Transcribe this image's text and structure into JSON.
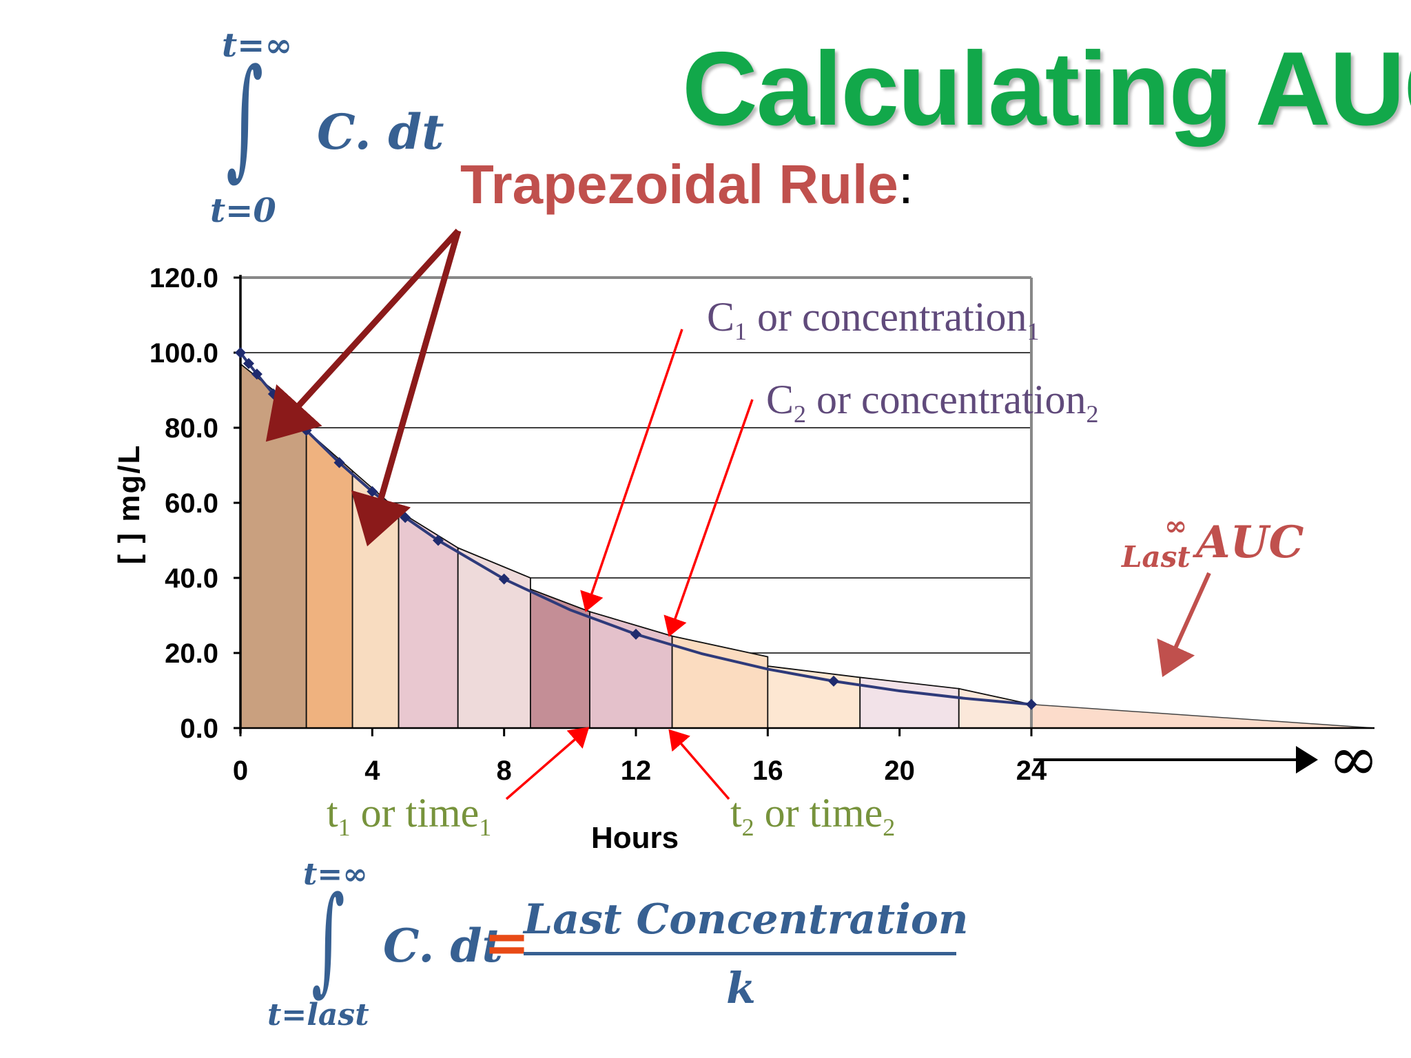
{
  "title": "Calculating AUC",
  "subtitle": "Trapezoidal Rule",
  "subtitle_colon": ":",
  "integral_top": {
    "upper": "t=∞",
    "lower": "t=0",
    "symbol": "∫",
    "integrand": "C. dt"
  },
  "annotations": {
    "c1": {
      "main": "C",
      "sub": "1",
      "text": " or concentration",
      "sub2": "1"
    },
    "c2": {
      "main": "C",
      "sub": "2",
      "text": " or concentration",
      "sub2": "2"
    },
    "t1": {
      "main": "t",
      "sub": "1",
      "text": " or time",
      "sub2": "1"
    },
    "t2": {
      "main": "t",
      "sub": "2",
      "text": " or time",
      "sub2": "2"
    },
    "last_auc": {
      "sup": "∞",
      "sub": "Last",
      "main": "AUC"
    },
    "infinity": "∞"
  },
  "formula_bottom": {
    "upper": "t=∞",
    "lower": "t=last",
    "symbol": "∫",
    "integrand": "C. dt",
    "equals": "=",
    "numerator": "Last Concentration",
    "denominator": "k"
  },
  "chart_data": {
    "type": "area",
    "xlabel": "Hours",
    "ylabel": "[ ] mg/L",
    "xlim": [
      0,
      24
    ],
    "ylim": [
      0,
      120
    ],
    "xticks": [
      "0",
      "4",
      "8",
      "12",
      "16",
      "20",
      "24"
    ],
    "yticks": [
      "0.0",
      "20.0",
      "40.0",
      "60.0",
      "80.0",
      "100.0",
      "120.0"
    ],
    "grid": true,
    "curve": {
      "x": [
        0,
        0.25,
        0.5,
        0.75,
        1,
        1.5,
        2,
        3,
        4,
        5,
        6,
        8,
        10,
        12,
        14,
        16,
        18,
        20,
        22,
        24
      ],
      "y": [
        100,
        97.1,
        94.3,
        91.6,
        89.0,
        84.0,
        79.3,
        70.7,
        63.0,
        56.1,
        50.0,
        39.7,
        31.5,
        25.0,
        19.8,
        15.7,
        12.5,
        9.9,
        7.9,
        6.3
      ]
    },
    "markers": {
      "x": [
        0,
        0.25,
        0.5,
        1,
        2,
        3,
        4,
        5,
        6,
        8,
        12,
        18,
        24
      ],
      "y": [
        100,
        97.1,
        94.3,
        89.0,
        79.3,
        70.7,
        63.0,
        56.1,
        50.0,
        39.7,
        25.0,
        12.5,
        6.3
      ]
    },
    "trapezoids": [
      {
        "x0": 0,
        "x1": 2,
        "y0": 97.0,
        "y1": 83.0,
        "color": "#c9a07f"
      },
      {
        "x0": 2,
        "x1": 3.4,
        "y0": 79.3,
        "y1": 68.5,
        "color": "#efb27f"
      },
      {
        "x0": 3.4,
        "x1": 4.8,
        "y0": 68.5,
        "y1": 57.8,
        "color": "#f8dcc0"
      },
      {
        "x0": 4.8,
        "x1": 6.6,
        "y0": 57.8,
        "y1": 48.0,
        "color": "#e9c8d0"
      },
      {
        "x0": 6.6,
        "x1": 8.8,
        "y0": 48.0,
        "y1": 40.0,
        "color": "#eedada"
      },
      {
        "x0": 8.8,
        "x1": 10.6,
        "y0": 37.0,
        "y1": 31.0,
        "color": "#c48e96"
      },
      {
        "x0": 10.6,
        "x1": 13.1,
        "y0": 31.0,
        "y1": 24.5,
        "color": "#e4c1cb"
      },
      {
        "x0": 13.1,
        "x1": 16.0,
        "y0": 24.5,
        "y1": 19.0,
        "color": "#fbdcc0"
      },
      {
        "x0": 16.0,
        "x1": 18.8,
        "y0": 16.5,
        "y1": 13.5,
        "color": "#fde7d2"
      },
      {
        "x0": 18.8,
        "x1": 21.8,
        "y0": 13.5,
        "y1": 10.5,
        "color": "#f2e2e8"
      },
      {
        "x0": 21.8,
        "x1": 24,
        "y0": 10.5,
        "y1": 6.3,
        "color": "#fbe8da"
      }
    ],
    "tail": {
      "x0": 24,
      "y0": 6.3,
      "color": "#fcdccb"
    },
    "colors": {
      "grid": "#000000",
      "curve": "#2e3a7a",
      "marker": "#1f2b6e",
      "border": "#888888",
      "arrow_dark": "#8b1a1a",
      "arrow_red": "#ff0000",
      "arrow_rose": "#c0504d"
    }
  }
}
